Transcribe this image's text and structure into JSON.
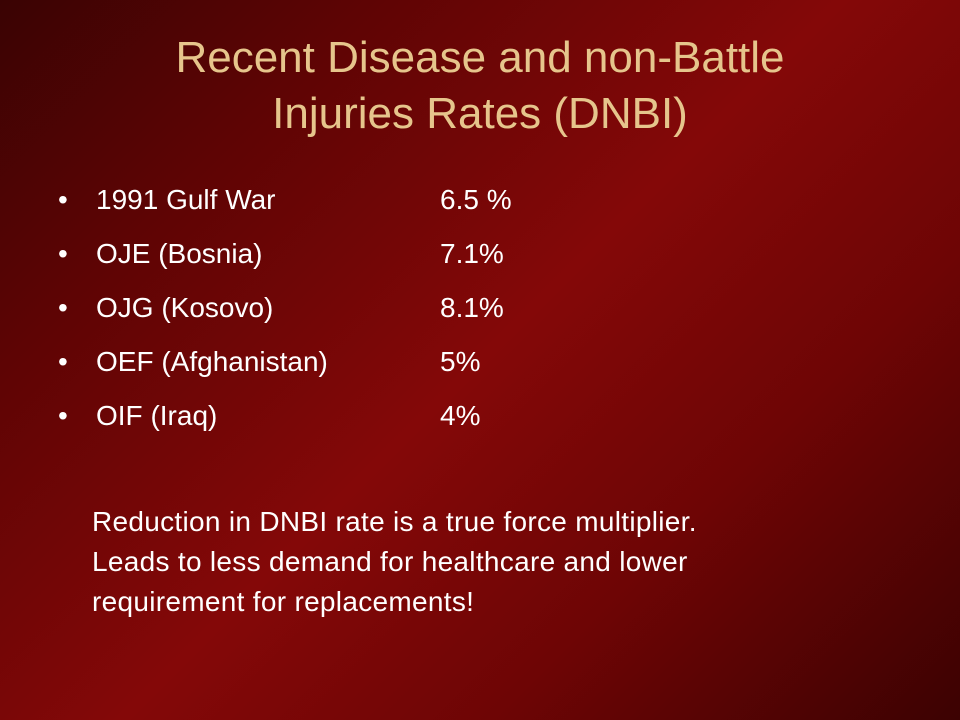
{
  "title": {
    "line1": "Recent Disease and non-Battle",
    "line2": "Injuries Rates (DNBI)"
  },
  "bullets": [
    {
      "label": "1991 Gulf War",
      "value": "6.5 %"
    },
    {
      "label": "OJE (Bosnia)",
      "value": "7.1%"
    },
    {
      "label": "OJG (Kosovo)",
      "value": "8.1%"
    },
    {
      "label": "OEF (Afghanistan)",
      "value": "5%"
    },
    {
      "label": "OIF (Iraq)",
      "value": "4%"
    }
  ],
  "bullet_symbol": "•",
  "note": {
    "line1": "Reduction in DNBI rate is a true force multiplier.",
    "line2": "Leads to less demand for healthcare and lower",
    "line3": "requirement for replacements!"
  },
  "colors": {
    "title": "#e6c58c",
    "text": "#ffffff",
    "background": "#840808"
  }
}
